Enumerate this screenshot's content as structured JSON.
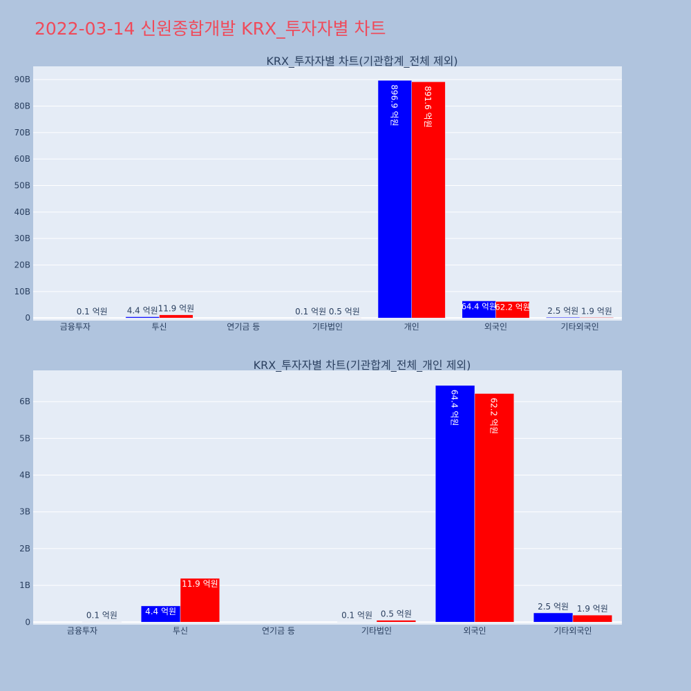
{
  "title": "2022-03-14 신원종합개발 KRX_투자자별 차트",
  "colors": {
    "background": "#b0c4de",
    "plot": "#e5ecf6",
    "title": "#ef4a5a",
    "series1": "#0000ff",
    "series2": "#ff0000"
  },
  "chart_data": [
    {
      "type": "bar",
      "title": "KRX_투자자별 차트(기관합계_전체 제외)",
      "categories": [
        "금융투자",
        "투신",
        "연기금 등",
        "기타법인",
        "개인",
        "외국인",
        "기타외국인"
      ],
      "ylim": [
        -1,
        95
      ],
      "yticks": [
        0,
        10,
        20,
        30,
        40,
        50,
        60,
        70,
        80,
        90
      ],
      "ytick_labels": [
        "0",
        "10B",
        "20B",
        "30B",
        "40B",
        "50B",
        "60B",
        "70B",
        "80B",
        "90B"
      ],
      "grid": true,
      "series": [
        {
          "color": "#0000ff",
          "values": [
            0.0,
            0.44,
            0,
            0.01,
            89.69,
            6.44,
            0.25
          ],
          "labels": [
            "",
            "4.4 억원",
            "",
            "0.1 억원",
            "896.9 억원",
            "64.4 억원",
            "2.5 억원"
          ]
        },
        {
          "color": "#ff0000",
          "values": [
            0.01,
            1.19,
            0,
            0.05,
            89.16,
            6.22,
            0.19
          ],
          "labels": [
            "0.1 억원",
            "11.9 억원",
            "",
            "0.5 억원",
            "891.6 억원",
            "62.2 억원",
            "1.9 억원"
          ]
        }
      ]
    },
    {
      "type": "bar",
      "title": "KRX_투자자별 차트(기관합계_전체_개인 제외)",
      "categories": [
        "금융투자",
        "투신",
        "연기금 등",
        "기타법인",
        "외국인",
        "기타외국인"
      ],
      "ylim": [
        -0.07,
        6.85
      ],
      "yticks": [
        0,
        1,
        2,
        3,
        4,
        5,
        6
      ],
      "ytick_labels": [
        "0",
        "1B",
        "2B",
        "3B",
        "4B",
        "5B",
        "6B"
      ],
      "grid": true,
      "series": [
        {
          "color": "#0000ff",
          "values": [
            0.0,
            0.44,
            0,
            0.01,
            6.44,
            0.25
          ],
          "labels": [
            "",
            "4.4 억원",
            "",
            "0.1 억원",
            "64.4 억원",
            "2.5 억원"
          ]
        },
        {
          "color": "#ff0000",
          "values": [
            0.01,
            1.19,
            0,
            0.05,
            6.22,
            0.19
          ],
          "labels": [
            "0.1 억원",
            "11.9 억원",
            "",
            "0.5 억원",
            "62.2 억원",
            "1.9 억원"
          ]
        }
      ]
    }
  ]
}
